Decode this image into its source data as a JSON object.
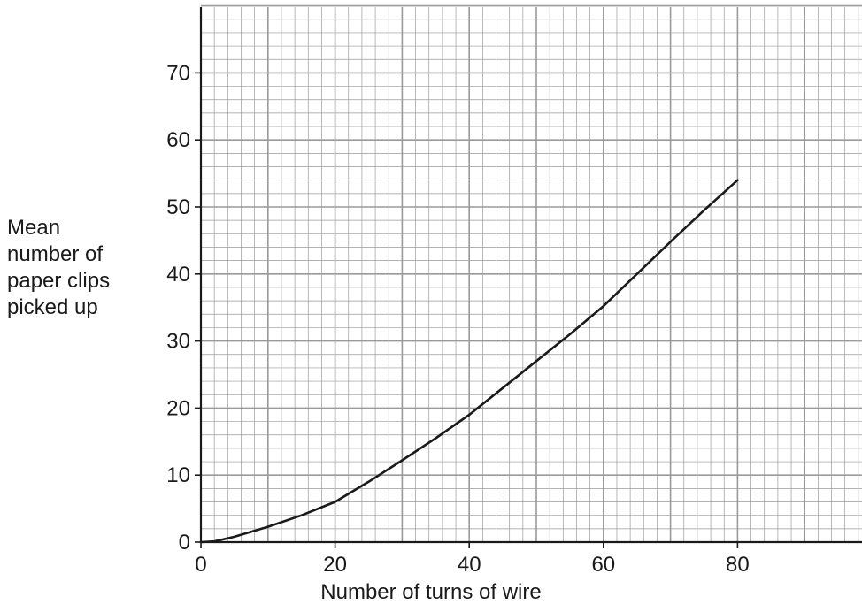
{
  "chart_data": {
    "type": "line",
    "title": "",
    "xlabel": "Number of turns of wire",
    "ylabel_lines": [
      "Mean",
      "number of",
      "paper clips",
      "picked up"
    ],
    "xlim": [
      0,
      99
    ],
    "ylim": [
      0,
      80
    ],
    "x_ticks": [
      0,
      20,
      40,
      60,
      80
    ],
    "y_ticks": [
      0,
      10,
      20,
      30,
      40,
      50,
      60,
      70
    ],
    "grid": true,
    "grid_minor_step_x": 2,
    "grid_minor_step_y": 2,
    "grid_major_step_x": 10,
    "grid_major_step_y": 10,
    "line_color": "#1a1a1a",
    "grid_color": "#9a9a9a",
    "series": [
      {
        "x": [
          0,
          2,
          5,
          10,
          15,
          20,
          25,
          30,
          35,
          40,
          45,
          50,
          55,
          60,
          65,
          70,
          75,
          80
        ],
        "y": [
          0,
          0.1,
          0.8,
          2.3,
          4.0,
          6.0,
          9.0,
          12.2,
          15.5,
          19.0,
          23.0,
          27.0,
          31.0,
          35.2,
          40.0,
          44.8,
          49.5,
          54.0
        ]
      }
    ]
  }
}
